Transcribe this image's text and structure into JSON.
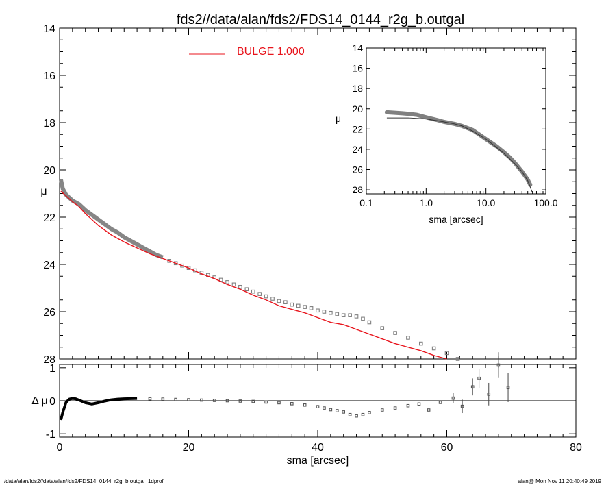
{
  "title": "fds2//data/alan/fds2/FDS14_0144_r2g_b.outgal",
  "footer_left": "/data/alan/fds2//data/alan/fds2/FDS14_0144_r2g_b.outgal_1dprof",
  "footer_right": "alan@  Mon Nov 11 20:40:49 2019",
  "colors": {
    "model": "#e8141c",
    "data": "#808080",
    "axis": "#000000"
  },
  "chart_data": [
    {
      "id": "main",
      "type": "scatter",
      "xlabel": "sma [arcsec]",
      "ylabel": "μ",
      "xlim": [
        0,
        80
      ],
      "ylim": [
        28,
        14
      ],
      "x_ticks": [
        0,
        20,
        40,
        60,
        80
      ],
      "y_ticks": [
        14,
        16,
        18,
        20,
        22,
        24,
        26,
        28
      ],
      "legend": {
        "label": "BULGE  1.000",
        "position": "top-center"
      },
      "series": [
        {
          "name": "BULGE  1.000",
          "kind": "line",
          "x": [
            0.2,
            1,
            2,
            3,
            4,
            6,
            8,
            10,
            12,
            14,
            16,
            18,
            20,
            22,
            24,
            26,
            28,
            30,
            32,
            34,
            36,
            38,
            40,
            42,
            44,
            46,
            48,
            50,
            52,
            54,
            56,
            58,
            60
          ],
          "y": [
            20.9,
            21.1,
            21.35,
            21.55,
            21.85,
            22.35,
            22.75,
            23.05,
            23.3,
            23.55,
            23.75,
            23.95,
            24.15,
            24.4,
            24.6,
            24.85,
            25.05,
            25.3,
            25.5,
            25.75,
            25.9,
            26.05,
            26.25,
            26.45,
            26.55,
            26.75,
            26.95,
            27.15,
            27.35,
            27.5,
            27.65,
            27.85,
            28.0
          ]
        },
        {
          "kind": "points",
          "x": [
            0.2,
            0.5,
            1,
            2,
            3,
            4,
            5,
            6,
            7,
            8,
            9,
            10,
            11,
            12,
            13,
            14,
            15,
            16,
            17,
            18,
            19,
            20,
            21,
            22,
            23,
            24,
            25,
            26,
            27,
            28,
            29,
            30,
            31,
            32,
            33,
            34,
            35,
            36,
            37,
            38,
            39,
            40,
            41,
            42,
            43,
            44,
            45,
            46,
            47,
            48,
            50,
            52,
            54,
            56,
            58,
            60,
            61.7
          ],
          "y": [
            20.4,
            20.8,
            21.05,
            21.3,
            21.45,
            21.7,
            21.9,
            22.1,
            22.3,
            22.5,
            22.65,
            22.85,
            23.0,
            23.15,
            23.3,
            23.45,
            23.6,
            23.7,
            23.85,
            23.95,
            24.05,
            24.15,
            24.25,
            24.35,
            24.45,
            24.55,
            24.65,
            24.75,
            24.85,
            24.95,
            25.05,
            25.15,
            25.25,
            25.35,
            25.45,
            25.55,
            25.6,
            25.7,
            25.75,
            25.8,
            25.85,
            25.95,
            26.0,
            26.05,
            26.1,
            26.15,
            26.15,
            26.2,
            26.3,
            26.45,
            26.7,
            26.9,
            27.1,
            27.35,
            27.55,
            27.75,
            28.0
          ]
        }
      ]
    },
    {
      "id": "residual",
      "type": "scatter",
      "xlabel": "sma [arcsec]",
      "ylabel": "Δ μ",
      "xlim": [
        0,
        80
      ],
      "ylim": [
        -1.1,
        1.1
      ],
      "x_ticks": [
        0,
        20,
        40,
        60,
        80
      ],
      "y_ticks": [
        -1,
        0,
        1
      ],
      "series": [
        {
          "kind": "points",
          "x": [
            0.2,
            0.5,
            1,
            1.5,
            2,
            2.5,
            3,
            4,
            5,
            6,
            7,
            8,
            9,
            10,
            12,
            14,
            16,
            18,
            20,
            22,
            24,
            26,
            28,
            30,
            32,
            34,
            36,
            38,
            40,
            41,
            42,
            43,
            44,
            45,
            46,
            47,
            48,
            50,
            52,
            54,
            55.7,
            57.2,
            59,
            61,
            62.4,
            64,
            65,
            66.5,
            68,
            69.5
          ],
          "y": [
            -0.58,
            -0.35,
            -0.05,
            0.05,
            0.07,
            0.06,
            0.02,
            -0.06,
            -0.1,
            -0.06,
            -0.01,
            0.03,
            0.05,
            0.06,
            0.07,
            0.06,
            0.05,
            0.04,
            0.03,
            0.02,
            0.01,
            0.0,
            -0.01,
            -0.02,
            -0.04,
            -0.06,
            -0.09,
            -0.13,
            -0.18,
            -0.22,
            -0.27,
            -0.3,
            -0.34,
            -0.42,
            -0.46,
            -0.42,
            -0.36,
            -0.28,
            -0.22,
            -0.15,
            -0.1,
            -0.28,
            -0.05,
            0.08,
            -0.17,
            0.42,
            0.68,
            0.2,
            1.08,
            0.4
          ]
        }
      ]
    },
    {
      "id": "inset",
      "type": "line",
      "xlabel": "sma [arcsec]",
      "ylabel": "μ",
      "xscale": "log",
      "xlim": [
        0.1,
        100.0
      ],
      "ylim": [
        28.4,
        14
      ],
      "x_tick_labels": [
        "0.1",
        "1.0",
        "10.0",
        "100.0"
      ],
      "y_ticks": [
        14,
        16,
        18,
        20,
        22,
        24,
        26,
        28
      ],
      "series": [
        {
          "kind": "line",
          "x": [
            0.22,
            0.5,
            1,
            2,
            3,
            4,
            6,
            10,
            15,
            20,
            30,
            40,
            50,
            60
          ],
          "y": [
            20.9,
            20.9,
            21.0,
            21.3,
            21.5,
            21.7,
            22.2,
            23.0,
            23.8,
            24.4,
            25.4,
            26.2,
            27.1,
            28.3
          ]
        },
        {
          "kind": "points",
          "x": [
            0.22,
            0.3,
            0.4,
            0.5,
            0.7,
            1,
            1.5,
            2,
            3,
            4,
            6,
            8,
            10,
            15,
            20,
            25,
            30,
            40,
            50,
            55
          ],
          "y": [
            20.35,
            20.4,
            20.45,
            20.5,
            20.6,
            20.85,
            21.1,
            21.3,
            21.5,
            21.7,
            22.1,
            22.6,
            23.0,
            23.7,
            24.3,
            24.8,
            25.3,
            26.2,
            27.0,
            27.5
          ]
        }
      ]
    }
  ]
}
